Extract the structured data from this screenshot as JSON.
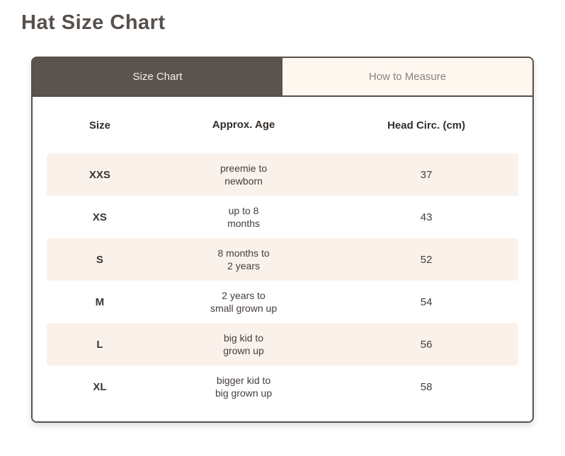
{
  "page": {
    "title": "Hat Size Chart"
  },
  "tabs": {
    "size_chart": {
      "label": "Size Chart",
      "active": true
    },
    "how_to_measure": {
      "label": "How to Measure",
      "active": false
    }
  },
  "table": {
    "columns": [
      "Size",
      "Approx. Age",
      "Head Circ. (cm)"
    ],
    "rows": [
      {
        "size": "XXS",
        "age": "preemie to\nnewborn",
        "head_circ_cm": "37"
      },
      {
        "size": "XS",
        "age": "up to 8\nmonths",
        "head_circ_cm": "43"
      },
      {
        "size": "S",
        "age": "8 months to\n2 years",
        "head_circ_cm": "52"
      },
      {
        "size": "M",
        "age": "2 years to\nsmall grown up",
        "head_circ_cm": "54"
      },
      {
        "size": "L",
        "age": "big kid to\ngrown up",
        "head_circ_cm": "56"
      },
      {
        "size": "XL",
        "age": "bigger kid to\nbig grown up",
        "head_circ_cm": "58"
      }
    ]
  },
  "colors": {
    "tab_active_bg": "#5b534e",
    "tab_active_text": "#f7f1ea",
    "tab_inactive_bg": "#fdf7f0",
    "tab_inactive_text": "#8b827b",
    "card_border": "#56504b",
    "row_alt_bg": "#faf1ea",
    "heading_text": "#57504c",
    "body_text": "#453e3a"
  }
}
